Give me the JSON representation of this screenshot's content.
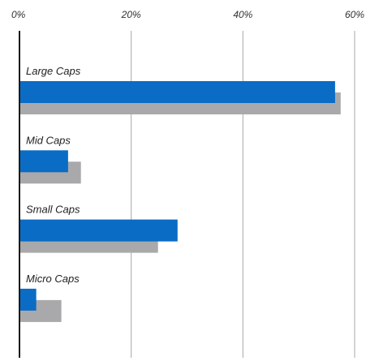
{
  "chart_data": {
    "type": "bar",
    "orientation": "horizontal",
    "categories": [
      "Large Caps",
      "Mid Caps",
      "Small Caps",
      "Micro Caps"
    ],
    "series": [
      {
        "values": [
          56.5,
          8.7,
          28.3,
          3.0
        ],
        "color": "#0a6cc4"
      },
      {
        "values": [
          57.5,
          11.0,
          24.8,
          7.5
        ],
        "color": "#a9a9ab"
      }
    ],
    "xlim": [
      0,
      60
    ],
    "x_ticks": [
      "0%",
      "20%",
      "40%",
      "60%"
    ],
    "x_tick_values": [
      0,
      20,
      40,
      60
    ],
    "grid": true,
    "axis_position": "top",
    "legend": "none"
  }
}
